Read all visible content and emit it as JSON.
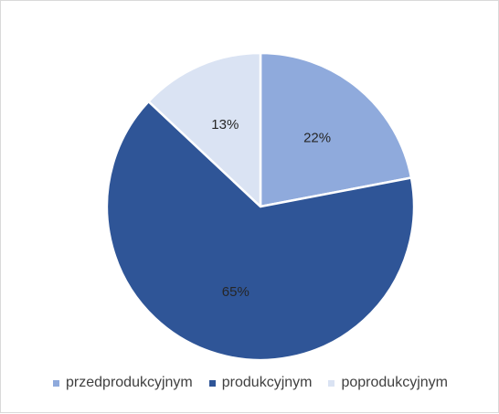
{
  "chart_data": {
    "type": "pie",
    "title": "",
    "slices": [
      {
        "name": "przedprodukcyjnym",
        "value": 22,
        "label": "22%",
        "color": "#8faadc"
      },
      {
        "name": "produkcyjnym",
        "value": 65,
        "label": "65%",
        "color": "#2f5597"
      },
      {
        "name": "poprodukcyjnym",
        "value": 13,
        "label": "13%",
        "color": "#dae3f3"
      }
    ],
    "legend_position": "bottom",
    "start_angle": "12 o'clock",
    "direction": "clockwise"
  }
}
